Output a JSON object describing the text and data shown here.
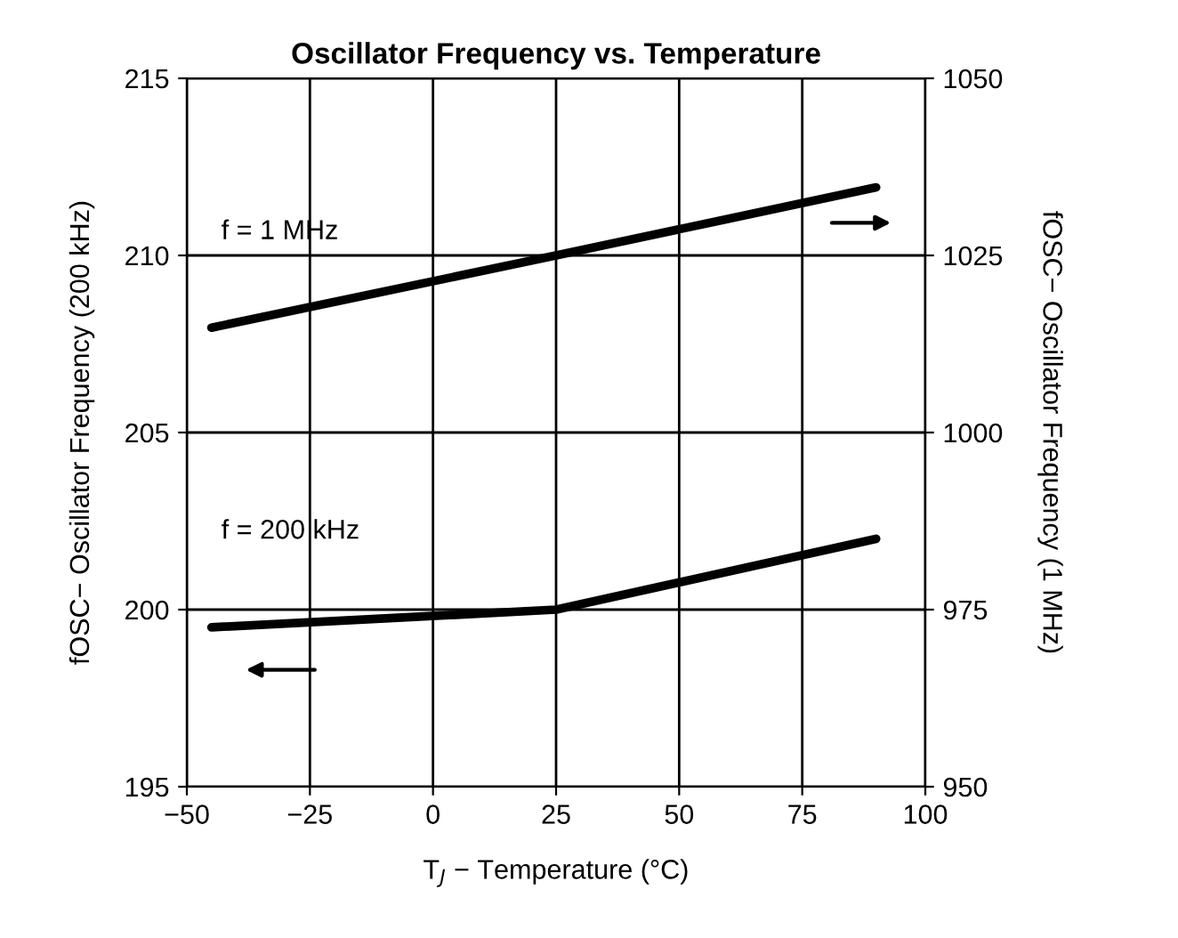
{
  "chart_data": {
    "type": "line",
    "title": "Oscillator Frequency vs. Temperature",
    "xlabel": "T$_{J}$ − Temperature (°C)",
    "ylabel": "fOSC− Oscillator Frequency (200 kHz)",
    "y2label": "fOSC− Oscillator Frequency (1 MHz)",
    "xlim": [
      -50,
      100
    ],
    "xticks": [
      {
        "value": -50,
        "label": "−50"
      },
      {
        "value": -25,
        "label": "−25"
      },
      0,
      25,
      50,
      75,
      100
    ],
    "ylim": [
      195,
      215
    ],
    "yticks": [
      195,
      200,
      205,
      210,
      215
    ],
    "y2lim": [
      950,
      1050
    ],
    "y2ticks": [
      950,
      975,
      1000,
      1025,
      1050
    ],
    "grid": true,
    "line_style": "solid",
    "marker": "none",
    "series": [
      {
        "name": "f = 1 MHz",
        "color": "#000000",
        "axis": "y2",
        "x": [
          -45,
          25,
          90
        ],
        "values": [
          1014.8,
          1025,
          1034.6
        ]
      },
      {
        "name": "f = 200 kHz",
        "color": "#000000",
        "x": [
          -45,
          25,
          90
        ],
        "values": [
          199.5,
          200.0,
          202.0
        ]
      }
    ]
  }
}
